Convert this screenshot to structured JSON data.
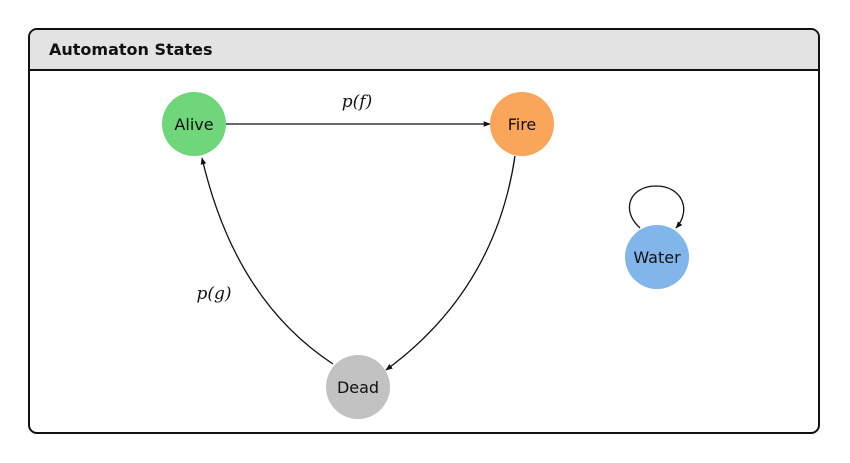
{
  "panel": {
    "title": "Automaton States"
  },
  "nodes": {
    "alive": {
      "label": "Alive",
      "color": "#6fd67a"
    },
    "fire": {
      "label": "Fire",
      "color": "#f9a55a"
    },
    "dead": {
      "label": "Dead",
      "color": "#c2c2c2"
    },
    "water": {
      "label": "Water",
      "color": "#82b6ea"
    }
  },
  "edges": {
    "alive_to_fire": {
      "label": "p(f)"
    },
    "dead_to_alive": {
      "label": "p(g)"
    },
    "fire_to_dead": {},
    "water_self_loop": {}
  }
}
